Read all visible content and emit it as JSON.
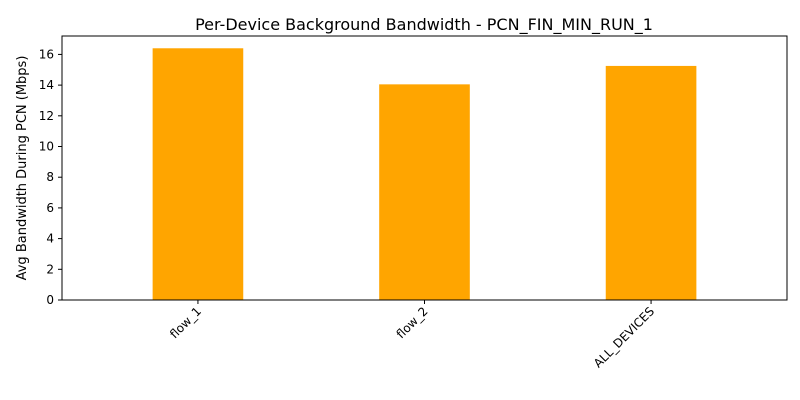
{
  "chart_data": {
    "type": "bar",
    "title": "Per-Device Background Bandwidth - PCN_FIN_MIN_RUN_1",
    "xlabel": "",
    "ylabel": "Avg Bandwidth During PCN (Mbps)",
    "categories": [
      "flow_1",
      "flow_2",
      "ALL_DEVICES"
    ],
    "values": [
      16.4,
      14.05,
      15.25
    ],
    "ylim": [
      0,
      17.2
    ],
    "yticks": [
      0,
      2,
      4,
      6,
      8,
      10,
      12,
      14,
      16
    ],
    "ytick_labels": [
      "0",
      "2",
      "4",
      "6",
      "8",
      "10",
      "12",
      "14",
      "16"
    ],
    "xtick_rotation_deg": 45,
    "bar_color": "#FFA500",
    "grid": false,
    "legend": "none"
  }
}
